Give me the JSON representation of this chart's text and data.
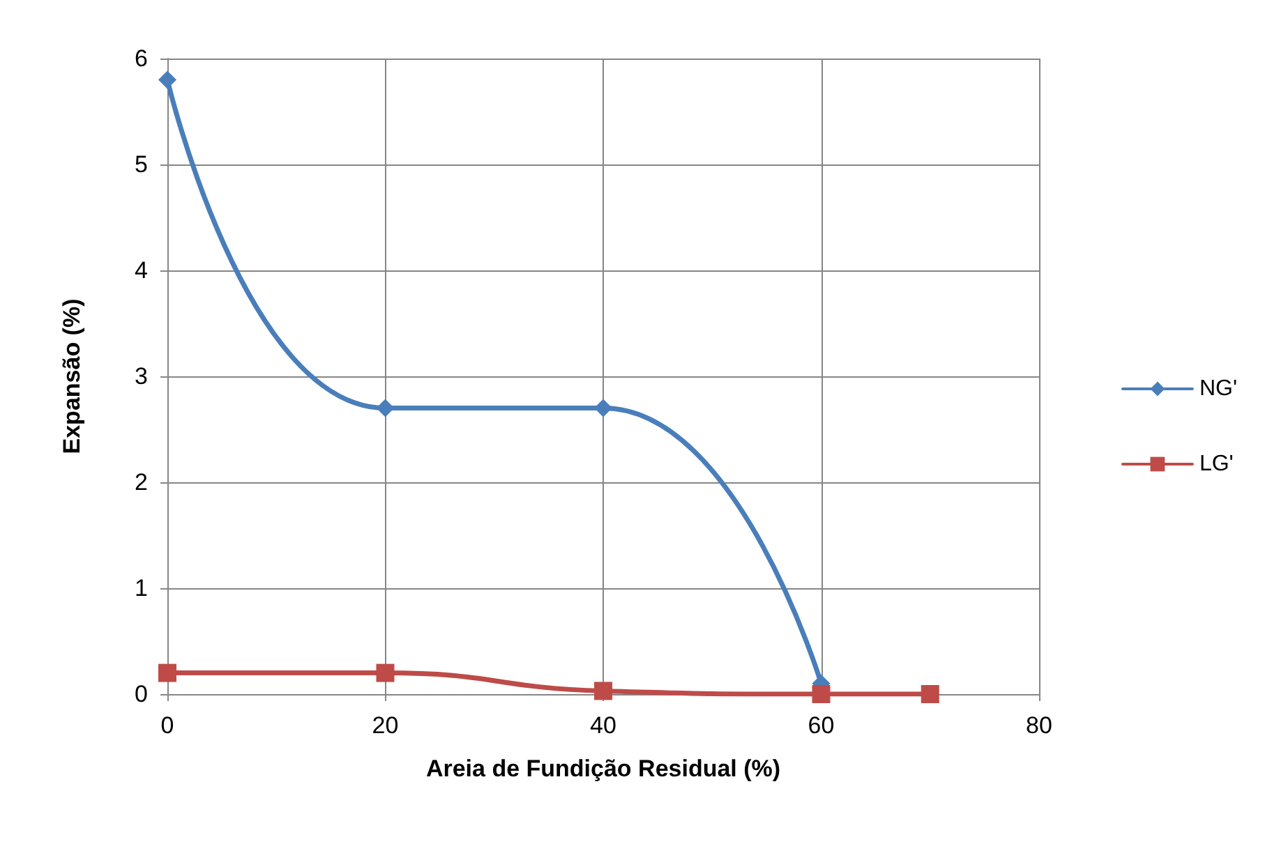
{
  "chart_data": {
    "type": "line",
    "xlabel": "Areia de Fundição Residual (%)",
    "ylabel": "Expansão (%)",
    "xlim": [
      0,
      80
    ],
    "xticks": [
      0,
      20,
      40,
      60,
      80
    ],
    "ylim": [
      0,
      6
    ],
    "yticks": [
      0,
      1,
      2,
      3,
      4,
      5,
      6
    ],
    "grid": true,
    "legend": "right",
    "line_style": "solid",
    "series": [
      {
        "name": "NG'",
        "color": "#4a7ebb",
        "marker": "diamond",
        "x": [
          0,
          20,
          40,
          60
        ],
        "values": [
          5.8,
          2.7,
          2.7,
          0.1
        ]
      },
      {
        "name": "LG'",
        "color": "#be4b48",
        "marker": "square",
        "x": [
          0,
          20,
          40,
          60,
          70
        ],
        "values": [
          0.2,
          0.2,
          0.03,
          0,
          0
        ]
      }
    ]
  }
}
